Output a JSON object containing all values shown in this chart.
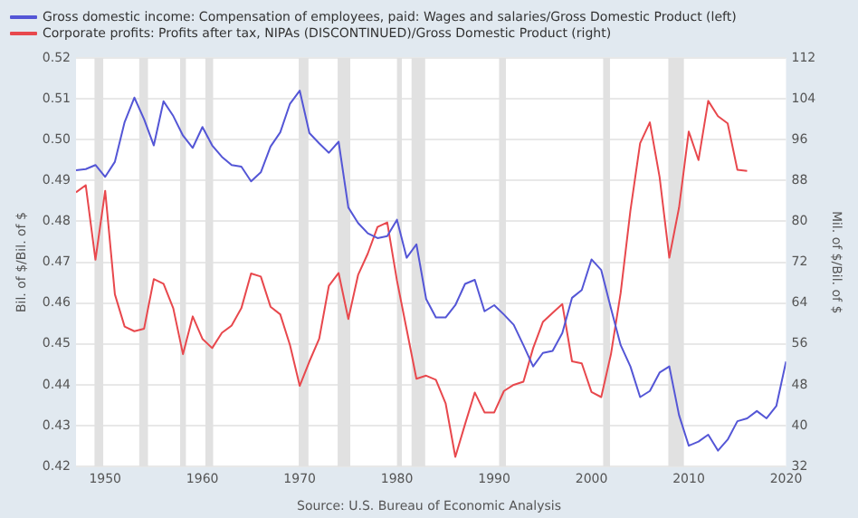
{
  "chart_data": {
    "type": "line",
    "ylabel": "Bil. of $/Bil. of $",
    "y2label": "Mil. of $/Bil. of $",
    "annotations": [
      "Source: U.S. Bureau of Economic Analysis"
    ],
    "xlim": [
      1947,
      2020
    ],
    "xticks": [
      1950,
      1960,
      1970,
      1980,
      1990,
      2000,
      2010,
      2020
    ],
    "ylim": [
      0.42,
      0.52
    ],
    "yticks": [
      0.42,
      0.43,
      0.44,
      0.45,
      0.46,
      0.47,
      0.48,
      0.49,
      {
        "value": 0.5,
        "label": "0.50"
      },
      0.51,
      0.52
    ],
    "y2lim": [
      32,
      112
    ],
    "y2ticks": [
      32,
      40,
      48,
      56,
      64,
      72,
      80,
      88,
      96,
      104,
      112
    ],
    "grid": "y",
    "legend": "top left",
    "marker": "none",
    "line_style": "solid",
    "bands": [
      {
        "axis": "x",
        "from": 1948.9,
        "to": 1949.8,
        "color": "#e1e1e1"
      },
      {
        "axis": "x",
        "from": 1953.5,
        "to": 1954.4,
        "color": "#e1e1e1"
      },
      {
        "axis": "x",
        "from": 1957.7,
        "to": 1958.3,
        "color": "#e1e1e1"
      },
      {
        "axis": "x",
        "from": 1960.3,
        "to": 1961.1,
        "color": "#e1e1e1"
      },
      {
        "axis": "x",
        "from": 1969.9,
        "to": 1970.9,
        "color": "#e1e1e1"
      },
      {
        "axis": "x",
        "from": 1973.9,
        "to": 1975.2,
        "color": "#e1e1e1"
      },
      {
        "axis": "x",
        "from": 1980,
        "to": 1980.5,
        "color": "#e1e1e1"
      },
      {
        "axis": "x",
        "from": 1981.5,
        "to": 1982.9,
        "color": "#e1e1e1"
      },
      {
        "axis": "x",
        "from": 1990.5,
        "to": 1991.2,
        "color": "#e1e1e1"
      },
      {
        "axis": "x",
        "from": 2001.2,
        "to": 2001.9,
        "color": "#e1e1e1"
      },
      {
        "axis": "x",
        "from": 2007.9,
        "to": 2009.5,
        "color": "#e1e1e1"
      }
    ],
    "series": [
      {
        "name": "Gross domestic income: Compensation of employees, paid: Wages and salaries/Gross Domestic Product (left)",
        "color": "#5456d6",
        "x": [
          1947,
          1948,
          1949,
          1950,
          1951,
          1952,
          1953,
          1954,
          1955,
          1956,
          1957,
          1958,
          1959,
          1960,
          1961,
          1962,
          1963,
          1964,
          1965,
          1966,
          1967,
          1968,
          1969,
          1970,
          1971,
          1972,
          1973,
          1974,
          1975,
          1976,
          1977,
          1978,
          1979,
          1980,
          1981,
          1982,
          1983,
          1984,
          1985,
          1986,
          1987,
          1988,
          1989,
          1990,
          1991,
          1992,
          1993,
          1994,
          1995,
          1996,
          1997,
          1998,
          1999,
          2000,
          2001,
          2002,
          2003,
          2004,
          2005,
          2006,
          2007,
          2008,
          2009,
          2010,
          2011,
          2012,
          2013,
          2014,
          2015,
          2016,
          2017,
          2018,
          2019,
          2020
        ],
        "values": [
          0.4925,
          0.4928,
          0.4938,
          0.4909,
          0.4946,
          0.5043,
          0.5103,
          0.505,
          0.4986,
          0.5094,
          0.5058,
          0.501,
          0.498,
          0.5031,
          0.4986,
          0.4958,
          0.4938,
          0.4934,
          0.4898,
          0.492,
          0.4983,
          0.5018,
          0.5088,
          0.512,
          0.5016,
          0.4991,
          0.4968,
          0.4995,
          0.4834,
          0.4796,
          0.4771,
          0.4759,
          0.4764,
          0.4804,
          0.4711,
          0.4744,
          0.461,
          0.4565,
          0.4565,
          0.4595,
          0.4647,
          0.4657,
          0.458,
          0.4595,
          0.4572,
          0.4547,
          0.4497,
          0.4445,
          0.4478,
          0.4483,
          0.4527,
          0.4613,
          0.4632,
          0.4707,
          0.4681,
          0.4587,
          0.4497,
          0.4445,
          0.437,
          0.4385,
          0.443,
          0.4445,
          0.4326,
          0.4251,
          0.4261,
          0.4278,
          0.4239,
          0.4266,
          0.4311,
          0.4318,
          0.4336,
          0.4318,
          0.4348,
          0.4457
        ]
      },
      {
        "name": "Corporate profits: Profits after tax, NIPAs (DISCONTINUED)/Gross Domestic Product (right)",
        "color": "#e8484d",
        "axis": "y2",
        "x": [
          1947,
          1948,
          1949,
          1950,
          1951,
          1952,
          1953,
          1954,
          1955,
          1956,
          1957,
          1958,
          1959,
          1960,
          1961,
          1962,
          1963,
          1964,
          1965,
          1966,
          1967,
          1968,
          1969,
          1970,
          1971,
          1972,
          1973,
          1974,
          1975,
          1976,
          1977,
          1978,
          1979,
          1980,
          1981,
          1982,
          1983,
          1984,
          1985,
          1986,
          1987,
          1988,
          1989,
          1990,
          1991,
          1992,
          1993,
          1994,
          1995,
          1996,
          1997,
          1998,
          1999,
          2000,
          2001,
          2002,
          2003,
          2004,
          2005,
          2006,
          2007,
          2008,
          2009,
          2010,
          2011,
          2012,
          2013,
          2014,
          2015,
          2016
        ],
        "values": [
          85.7,
          87.1,
          72.5,
          86.0,
          65.7,
          59.4,
          58.5,
          59.0,
          68.7,
          67.8,
          63.0,
          54.0,
          61.4,
          57.0,
          55.2,
          58.2,
          59.6,
          63.0,
          69.8,
          69.2,
          63.3,
          61.8,
          55.8,
          47.8,
          52.6,
          57.0,
          67.4,
          69.9,
          60.9,
          69.5,
          73.7,
          78.9,
          79.8,
          68.4,
          58.8,
          49.2,
          49.8,
          49.0,
          44.4,
          33.9,
          40.3,
          46.5,
          42.6,
          42.6,
          46.8,
          48.0,
          48.6,
          55.2,
          60.3,
          62.1,
          63.8,
          52.6,
          52.2,
          46.6,
          45.6,
          54.0,
          66.0,
          82.1,
          95.3,
          99.4,
          88.7,
          72.9,
          82.7,
          97.6,
          92.0,
          103.6,
          100.6,
          99.2,
          90.1,
          89.9
        ]
      }
    ]
  }
}
